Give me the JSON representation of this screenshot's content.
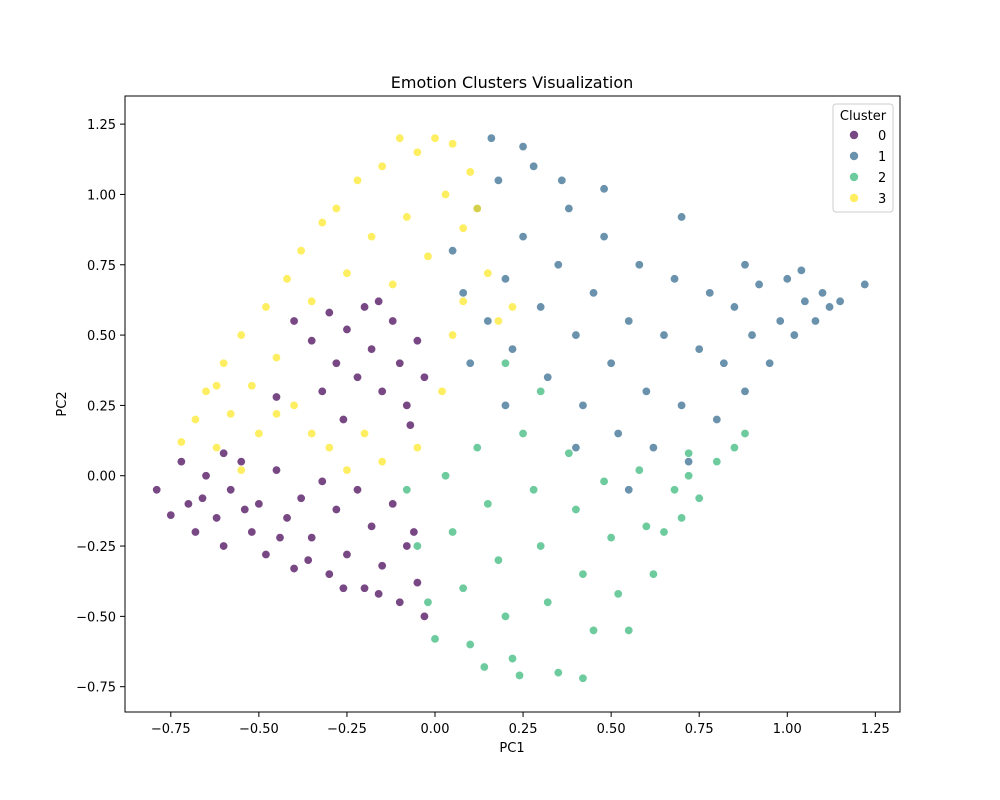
{
  "chart_data": {
    "type": "scatter",
    "title": "Emotion Clusters Visualization",
    "xlabel": "PC1",
    "ylabel": "PC2",
    "xlim": [
      -0.88,
      1.32
    ],
    "ylim": [
      -0.84,
      1.35
    ],
    "xticks": [
      -0.75,
      -0.5,
      -0.25,
      0.0,
      0.25,
      0.5,
      0.75,
      1.0,
      1.25
    ],
    "xtick_labels": [
      "−0.75",
      "−0.50",
      "−0.25",
      "0.00",
      "0.25",
      "0.50",
      "0.75",
      "1.00",
      "1.25"
    ],
    "yticks": [
      -0.75,
      -0.5,
      -0.25,
      0.0,
      0.25,
      0.5,
      0.75,
      1.0,
      1.25
    ],
    "ytick_labels": [
      "−0.75",
      "−0.50",
      "−0.25",
      "0.00",
      "0.25",
      "0.50",
      "0.75",
      "1.00",
      "1.25"
    ],
    "grid": false,
    "legend": {
      "title": "Cluster",
      "placement": "top-right"
    },
    "series": [
      {
        "name": "0",
        "color": "#440154",
        "points": [
          [
            -0.79,
            -0.05
          ],
          [
            -0.75,
            -0.14
          ],
          [
            -0.72,
            0.05
          ],
          [
            -0.7,
            -0.1
          ],
          [
            -0.68,
            -0.2
          ],
          [
            -0.65,
            0.0
          ],
          [
            -0.62,
            -0.15
          ],
          [
            -0.6,
            -0.25
          ],
          [
            -0.58,
            -0.05
          ],
          [
            -0.55,
            0.05
          ],
          [
            -0.52,
            -0.2
          ],
          [
            -0.5,
            -0.1
          ],
          [
            -0.48,
            -0.28
          ],
          [
            -0.45,
            0.02
          ],
          [
            -0.42,
            -0.15
          ],
          [
            -0.4,
            -0.33
          ],
          [
            -0.38,
            -0.08
          ],
          [
            -0.35,
            -0.22
          ],
          [
            -0.32,
            -0.02
          ],
          [
            -0.3,
            -0.35
          ],
          [
            -0.28,
            -0.12
          ],
          [
            -0.25,
            -0.28
          ],
          [
            -0.22,
            -0.05
          ],
          [
            -0.2,
            -0.4
          ],
          [
            -0.18,
            -0.18
          ],
          [
            -0.15,
            -0.32
          ],
          [
            -0.12,
            -0.1
          ],
          [
            -0.1,
            -0.45
          ],
          [
            -0.08,
            -0.25
          ],
          [
            -0.05,
            -0.38
          ],
          [
            -0.03,
            -0.5
          ],
          [
            -0.6,
            0.08
          ],
          [
            -0.66,
            -0.08
          ],
          [
            -0.54,
            -0.12
          ],
          [
            -0.44,
            -0.22
          ],
          [
            -0.36,
            -0.3
          ],
          [
            -0.26,
            -0.4
          ],
          [
            -0.16,
            -0.42
          ],
          [
            -0.06,
            -0.2
          ],
          [
            -0.35,
            0.48
          ],
          [
            -0.3,
            0.58
          ],
          [
            -0.28,
            0.4
          ],
          [
            -0.25,
            0.52
          ],
          [
            -0.22,
            0.35
          ],
          [
            -0.2,
            0.6
          ],
          [
            -0.18,
            0.45
          ],
          [
            -0.15,
            0.3
          ],
          [
            -0.12,
            0.55
          ],
          [
            -0.1,
            0.4
          ],
          [
            -0.08,
            0.25
          ],
          [
            -0.05,
            0.48
          ],
          [
            -0.03,
            0.35
          ],
          [
            -0.4,
            0.55
          ],
          [
            -0.32,
            0.3
          ],
          [
            -0.45,
            0.28
          ],
          [
            -0.26,
            0.2
          ],
          [
            -0.16,
            0.62
          ],
          [
            -0.07,
            0.18
          ]
        ]
      },
      {
        "name": "1",
        "color": "#31688e",
        "points": [
          [
            0.05,
            0.8
          ],
          [
            0.08,
            0.65
          ],
          [
            0.12,
            0.95
          ],
          [
            0.15,
            0.55
          ],
          [
            0.18,
            1.05
          ],
          [
            0.2,
            0.7
          ],
          [
            0.22,
            0.45
          ],
          [
            0.25,
            0.85
          ],
          [
            0.28,
            1.1
          ],
          [
            0.3,
            0.6
          ],
          [
            0.32,
            0.35
          ],
          [
            0.35,
            0.75
          ],
          [
            0.38,
            0.95
          ],
          [
            0.4,
            0.5
          ],
          [
            0.42,
            0.25
          ],
          [
            0.45,
            0.65
          ],
          [
            0.48,
            0.85
          ],
          [
            0.5,
            0.4
          ],
          [
            0.52,
            0.15
          ],
          [
            0.55,
            0.55
          ],
          [
            0.58,
            0.75
          ],
          [
            0.6,
            0.3
          ],
          [
            0.62,
            0.1
          ],
          [
            0.65,
            0.5
          ],
          [
            0.68,
            0.7
          ],
          [
            0.7,
            0.25
          ],
          [
            0.72,
            0.05
          ],
          [
            0.75,
            0.45
          ],
          [
            0.78,
            0.65
          ],
          [
            0.8,
            0.2
          ],
          [
            0.82,
            0.4
          ],
          [
            0.85,
            0.6
          ],
          [
            0.88,
            0.3
          ],
          [
            0.9,
            0.5
          ],
          [
            0.92,
            0.68
          ],
          [
            0.95,
            0.4
          ],
          [
            0.98,
            0.55
          ],
          [
            1.0,
            0.7
          ],
          [
            1.02,
            0.5
          ],
          [
            1.05,
            0.62
          ],
          [
            1.08,
            0.55
          ],
          [
            1.1,
            0.65
          ],
          [
            1.12,
            0.6
          ],
          [
            1.15,
            0.62
          ],
          [
            1.22,
            0.68
          ],
          [
            0.16,
            1.2
          ],
          [
            0.25,
            1.17
          ],
          [
            0.36,
            1.05
          ],
          [
            0.48,
            1.02
          ],
          [
            0.7,
            0.92
          ],
          [
            0.88,
            0.75
          ],
          [
            1.04,
            0.73
          ],
          [
            0.1,
            0.4
          ],
          [
            0.2,
            0.25
          ],
          [
            0.4,
            0.1
          ],
          [
            0.55,
            -0.05
          ]
        ]
      },
      {
        "name": "2",
        "color": "#35b779",
        "points": [
          [
            -0.08,
            -0.05
          ],
          [
            -0.05,
            -0.25
          ],
          [
            -0.02,
            -0.45
          ],
          [
            0.0,
            -0.58
          ],
          [
            0.03,
            0.0
          ],
          [
            0.05,
            -0.2
          ],
          [
            0.08,
            -0.4
          ],
          [
            0.1,
            -0.6
          ],
          [
            0.12,
            0.1
          ],
          [
            0.15,
            -0.1
          ],
          [
            0.18,
            -0.3
          ],
          [
            0.2,
            -0.5
          ],
          [
            0.22,
            -0.65
          ],
          [
            0.25,
            0.15
          ],
          [
            0.28,
            -0.05
          ],
          [
            0.3,
            -0.25
          ],
          [
            0.32,
            -0.45
          ],
          [
            0.35,
            -0.7
          ],
          [
            0.38,
            0.08
          ],
          [
            0.4,
            -0.12
          ],
          [
            0.42,
            -0.35
          ],
          [
            0.45,
            -0.55
          ],
          [
            0.48,
            -0.02
          ],
          [
            0.5,
            -0.22
          ],
          [
            0.52,
            -0.42
          ],
          [
            0.55,
            -0.55
          ],
          [
            0.58,
            0.02
          ],
          [
            0.6,
            -0.18
          ],
          [
            0.62,
            -0.35
          ],
          [
            0.65,
            -0.2
          ],
          [
            0.68,
            -0.05
          ],
          [
            0.7,
            -0.15
          ],
          [
            0.72,
            0.0
          ],
          [
            0.75,
            -0.08
          ],
          [
            0.8,
            0.05
          ],
          [
            0.85,
            0.1
          ],
          [
            0.88,
            0.15
          ],
          [
            0.24,
            -0.71
          ],
          [
            0.42,
            -0.72
          ],
          [
            0.14,
            -0.68
          ],
          [
            0.3,
            0.3
          ],
          [
            0.2,
            0.4
          ],
          [
            0.72,
            0.08
          ]
        ]
      },
      {
        "name": "3",
        "color": "#fde725",
        "points": [
          [
            -0.72,
            0.12
          ],
          [
            -0.68,
            0.2
          ],
          [
            -0.65,
            0.3
          ],
          [
            -0.62,
            0.1
          ],
          [
            -0.6,
            0.4
          ],
          [
            -0.58,
            0.22
          ],
          [
            -0.55,
            0.5
          ],
          [
            -0.52,
            0.32
          ],
          [
            -0.5,
            0.15
          ],
          [
            -0.48,
            0.6
          ],
          [
            -0.45,
            0.42
          ],
          [
            -0.42,
            0.7
          ],
          [
            -0.4,
            0.25
          ],
          [
            -0.38,
            0.8
          ],
          [
            -0.35,
            0.62
          ],
          [
            -0.32,
            0.9
          ],
          [
            -0.3,
            0.1
          ],
          [
            -0.28,
            0.95
          ],
          [
            -0.25,
            0.72
          ],
          [
            -0.22,
            1.05
          ],
          [
            -0.2,
            0.15
          ],
          [
            -0.18,
            0.85
          ],
          [
            -0.15,
            1.1
          ],
          [
            -0.12,
            0.68
          ],
          [
            -0.1,
            1.2
          ],
          [
            -0.08,
            0.92
          ],
          [
            -0.05,
            1.15
          ],
          [
            -0.02,
            0.78
          ],
          [
            0.0,
            1.2
          ],
          [
            0.03,
            1.0
          ],
          [
            0.05,
            1.18
          ],
          [
            0.08,
            0.88
          ],
          [
            0.1,
            1.08
          ],
          [
            0.12,
            0.95
          ],
          [
            0.15,
            0.72
          ],
          [
            -0.05,
            0.1
          ],
          [
            -0.15,
            0.05
          ],
          [
            -0.25,
            0.02
          ],
          [
            0.02,
            0.3
          ],
          [
            0.05,
            0.5
          ],
          [
            0.08,
            0.62
          ],
          [
            0.18,
            0.55
          ],
          [
            0.22,
            0.6
          ],
          [
            -0.55,
            0.02
          ],
          [
            -0.62,
            0.32
          ],
          [
            -0.45,
            0.22
          ],
          [
            -0.35,
            0.15
          ]
        ]
      }
    ]
  }
}
